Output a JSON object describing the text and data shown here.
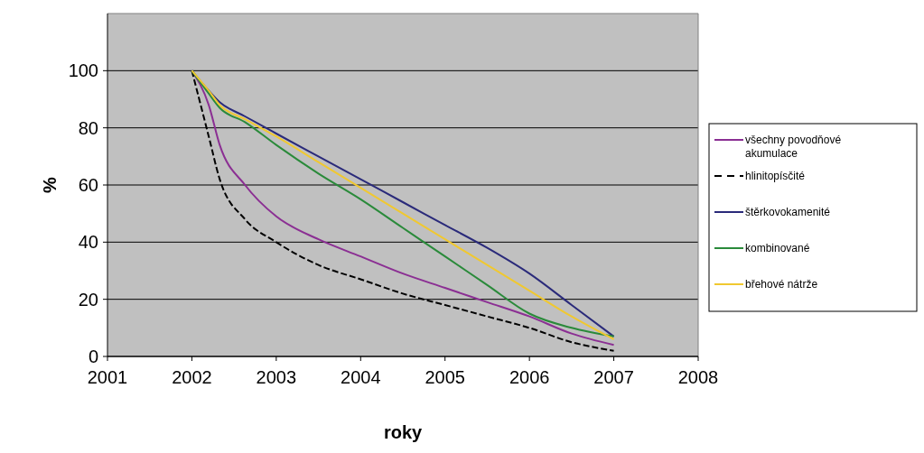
{
  "chart_data": {
    "type": "line",
    "xlabel": "roky",
    "ylabel": "%",
    "xlim": [
      2001,
      2008
    ],
    "xticks": [
      2001,
      2002,
      2003,
      2004,
      2005,
      2006,
      2007,
      2008
    ],
    "ylim": [
      0,
      120
    ],
    "yticks": [
      0,
      20,
      40,
      60,
      80,
      100
    ],
    "grid": "y",
    "legend": "right",
    "x": [
      2002,
      2002.2,
      2002.33,
      2002.63,
      2003,
      2003.5,
      2004,
      2004.5,
      2005,
      2005.5,
      2006,
      2006.5,
      2007
    ],
    "series": [
      {
        "name": "všechny povodňové akumulace",
        "color": "#8b2f93",
        "values": [
          100,
          88,
          74,
          60,
          49,
          41,
          35,
          29,
          24,
          19,
          14,
          8,
          4
        ]
      },
      {
        "name": "hlinitopísčité",
        "color": "#000000",
        "line_style": "dashed",
        "values": [
          100,
          77,
          62,
          48,
          40,
          32,
          27,
          22,
          18,
          14,
          10,
          5,
          2
        ]
      },
      {
        "name": "štěrkovokamenité",
        "color": "#2a2a7a",
        "values": [
          100,
          93,
          89,
          84,
          78,
          70,
          62,
          54,
          46,
          38,
          29,
          18,
          7
        ]
      },
      {
        "name": "kombinované",
        "color": "#2a8a3a",
        "values": [
          100,
          92,
          87,
          82,
          74,
          64,
          55,
          45,
          35,
          25,
          15,
          10,
          7
        ]
      },
      {
        "name": "břehové nátrže",
        "color": "#f0c830",
        "values": [
          100,
          93,
          88,
          83,
          77,
          68,
          59,
          50,
          41,
          32,
          23,
          14,
          6
        ]
      }
    ]
  }
}
